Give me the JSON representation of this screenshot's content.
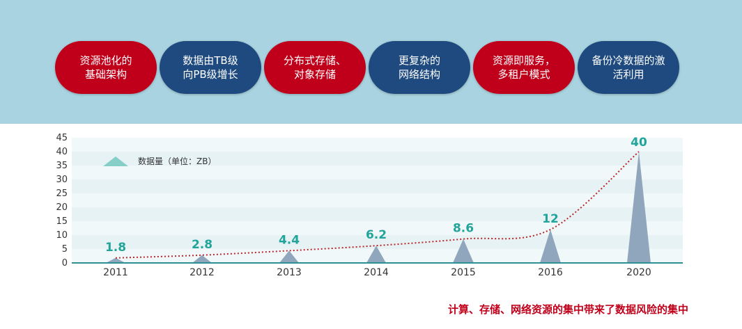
{
  "colors": {
    "banner_bg": "#a9d3e0",
    "red": "#c0001a",
    "blue": "#1e4a7f",
    "bar": "#8fa6bd",
    "label": "#22a49a",
    "trend": "#b8262b",
    "legend_marker": "#85cfc8",
    "axis": "#333333"
  },
  "pills": [
    {
      "text": "资源池化的\n基础架构",
      "color": "red"
    },
    {
      "text": "数据由TB级\n向PB级增长",
      "color": "blue"
    },
    {
      "text": "分布式存储、\n对象存储",
      "color": "red"
    },
    {
      "text": "更复杂的\n网络结构",
      "color": "blue"
    },
    {
      "text": "资源即服务，\n多租户模式",
      "color": "red"
    },
    {
      "text": "备份冷数据的激\n活利用",
      "color": "blue"
    }
  ],
  "chart_data": {
    "type": "area",
    "title": "",
    "xlabel": "",
    "ylabel": "",
    "categories": [
      "2011",
      "2012",
      "2013",
      "2014",
      "2015",
      "2016",
      "2020"
    ],
    "series": [
      {
        "name": "数据量（单位：ZB）",
        "values": [
          1.8,
          2.8,
          4.4,
          6.2,
          8.6,
          12,
          40
        ]
      }
    ],
    "data_labels": [
      "1.8",
      "2.8",
      "4.4",
      "6.2",
      "8.6",
      "12",
      "40"
    ],
    "ylim": [
      0,
      45
    ],
    "yticks": [
      0,
      5,
      10,
      15,
      20,
      25,
      30,
      35,
      40,
      45
    ],
    "legend_position": "top-left",
    "trendline": "dotted exponential",
    "grid": true
  },
  "footer_note": "计算、存储、网络资源的集中带来了数据风险的集中"
}
